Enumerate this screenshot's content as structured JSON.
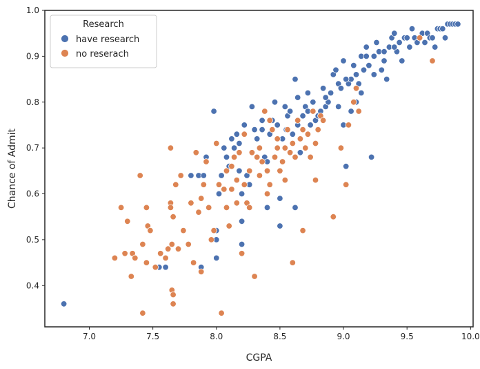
{
  "chart_data": {
    "type": "scatter",
    "title": "",
    "xlabel": "CGPA",
    "ylabel": "Chance of Admit",
    "xlim": [
      6.65,
      10.02
    ],
    "ylim": [
      0.31,
      1.0
    ],
    "xticks": [
      "7.0",
      "7.5",
      "8.0",
      "8.5",
      "9.0",
      "9.5",
      "10.0"
    ],
    "yticks": [
      "0.4",
      "0.5",
      "0.6",
      "0.7",
      "0.8",
      "0.9",
      "1.0"
    ],
    "grid": false,
    "legend": {
      "title": "Research",
      "placement": "top-left",
      "entries": [
        "have research",
        "no reserach"
      ]
    },
    "series": [
      {
        "name": "have research",
        "color": "#4c72b0",
        "points": [
          [
            6.8,
            0.36
          ],
          [
            7.55,
            0.44
          ],
          [
            7.6,
            0.44
          ],
          [
            7.88,
            0.44
          ],
          [
            7.86,
            0.64
          ],
          [
            7.9,
            0.64
          ],
          [
            7.92,
            0.68
          ],
          [
            7.8,
            0.64
          ],
          [
            7.98,
            0.78
          ],
          [
            8.0,
            0.5
          ],
          [
            8.0,
            0.52
          ],
          [
            8.0,
            0.46
          ],
          [
            8.02,
            0.6
          ],
          [
            8.04,
            0.64
          ],
          [
            8.06,
            0.7
          ],
          [
            8.08,
            0.68
          ],
          [
            8.1,
            0.66
          ],
          [
            8.12,
            0.72
          ],
          [
            8.14,
            0.7
          ],
          [
            8.16,
            0.73
          ],
          [
            8.18,
            0.65
          ],
          [
            8.2,
            0.6
          ],
          [
            8.2,
            0.54
          ],
          [
            8.2,
            0.49
          ],
          [
            8.22,
            0.75
          ],
          [
            8.24,
            0.64
          ],
          [
            8.26,
            0.62
          ],
          [
            8.28,
            0.79
          ],
          [
            8.3,
            0.74
          ],
          [
            8.32,
            0.72
          ],
          [
            8.34,
            0.7
          ],
          [
            8.36,
            0.76
          ],
          [
            8.38,
            0.68
          ],
          [
            8.4,
            0.67
          ],
          [
            8.4,
            0.57
          ],
          [
            8.42,
            0.73
          ],
          [
            8.44,
            0.76
          ],
          [
            8.46,
            0.8
          ],
          [
            8.48,
            0.75
          ],
          [
            8.5,
            0.59
          ],
          [
            8.5,
            0.53
          ],
          [
            8.52,
            0.72
          ],
          [
            8.54,
            0.79
          ],
          [
            8.56,
            0.77
          ],
          [
            8.58,
            0.78
          ],
          [
            8.6,
            0.73
          ],
          [
            8.62,
            0.85
          ],
          [
            8.62,
            0.57
          ],
          [
            8.64,
            0.81
          ],
          [
            8.66,
            0.69
          ],
          [
            8.68,
            0.77
          ],
          [
            8.7,
            0.79
          ],
          [
            8.72,
            0.82
          ],
          [
            8.74,
            0.75
          ],
          [
            8.76,
            0.8
          ],
          [
            8.78,
            0.76
          ],
          [
            8.8,
            0.77
          ],
          [
            8.82,
            0.78
          ],
          [
            8.84,
            0.83
          ],
          [
            8.86,
            0.79
          ],
          [
            8.88,
            0.8
          ],
          [
            8.9,
            0.82
          ],
          [
            8.92,
            0.86
          ],
          [
            8.94,
            0.87
          ],
          [
            8.96,
            0.84
          ],
          [
            8.98,
            0.83
          ],
          [
            9.0,
            0.89
          ],
          [
            9.0,
            0.75
          ],
          [
            9.02,
            0.66
          ],
          [
            9.04,
            0.84
          ],
          [
            9.06,
            0.85
          ],
          [
            9.08,
            0.88
          ],
          [
            9.1,
            0.86
          ],
          [
            9.1,
            0.8
          ],
          [
            9.12,
            0.84
          ],
          [
            9.14,
            0.9
          ],
          [
            9.16,
            0.87
          ],
          [
            9.18,
            0.92
          ],
          [
            9.2,
            0.88
          ],
          [
            9.22,
            0.68
          ],
          [
            9.24,
            0.9
          ],
          [
            9.26,
            0.93
          ],
          [
            9.28,
            0.91
          ],
          [
            9.3,
            0.87
          ],
          [
            9.32,
            0.89
          ],
          [
            9.34,
            0.85
          ],
          [
            9.36,
            0.92
          ],
          [
            9.38,
            0.94
          ],
          [
            9.4,
            0.95
          ],
          [
            9.42,
            0.91
          ],
          [
            9.44,
            0.93
          ],
          [
            9.46,
            0.89
          ],
          [
            9.48,
            0.94
          ],
          [
            9.5,
            0.94
          ],
          [
            9.52,
            0.92
          ],
          [
            9.54,
            0.96
          ],
          [
            9.56,
            0.94
          ],
          [
            9.58,
            0.93
          ],
          [
            9.6,
            0.94
          ],
          [
            9.62,
            0.95
          ],
          [
            9.64,
            0.93
          ],
          [
            9.66,
            0.95
          ],
          [
            9.68,
            0.94
          ],
          [
            9.7,
            0.94
          ],
          [
            9.72,
            0.92
          ],
          [
            9.74,
            0.96
          ],
          [
            9.76,
            0.96
          ],
          [
            9.78,
            0.96
          ],
          [
            9.8,
            0.94
          ],
          [
            9.82,
            0.97
          ],
          [
            9.84,
            0.97
          ],
          [
            9.86,
            0.97
          ],
          [
            9.88,
            0.97
          ],
          [
            9.9,
            0.97
          ],
          [
            8.18,
            0.71
          ],
          [
            8.64,
            0.75
          ],
          [
            8.86,
            0.81
          ],
          [
            9.02,
            0.85
          ],
          [
            9.18,
            0.9
          ],
          [
            9.32,
            0.91
          ],
          [
            8.36,
            0.74
          ],
          [
            8.55,
            0.74
          ],
          [
            8.72,
            0.78
          ],
          [
            8.96,
            0.79
          ],
          [
            9.06,
            0.78
          ],
          [
            9.14,
            0.82
          ],
          [
            9.24,
            0.86
          ],
          [
            9.4,
            0.92
          ]
        ]
      },
      {
        "name": "no reserach",
        "color": "#dd8452",
        "points": [
          [
            7.2,
            0.46
          ],
          [
            7.25,
            0.57
          ],
          [
            7.28,
            0.47
          ],
          [
            7.3,
            0.54
          ],
          [
            7.33,
            0.42
          ],
          [
            7.34,
            0.47
          ],
          [
            7.36,
            0.46
          ],
          [
            7.4,
            0.64
          ],
          [
            7.42,
            0.34
          ],
          [
            7.42,
            0.49
          ],
          [
            7.45,
            0.57
          ],
          [
            7.45,
            0.45
          ],
          [
            7.46,
            0.53
          ],
          [
            7.48,
            0.52
          ],
          [
            7.52,
            0.44
          ],
          [
            7.56,
            0.47
          ],
          [
            7.6,
            0.46
          ],
          [
            7.62,
            0.48
          ],
          [
            7.64,
            0.7
          ],
          [
            7.64,
            0.58
          ],
          [
            7.64,
            0.57
          ],
          [
            7.65,
            0.49
          ],
          [
            7.65,
            0.39
          ],
          [
            7.66,
            0.38
          ],
          [
            7.66,
            0.36
          ],
          [
            7.66,
            0.55
          ],
          [
            7.68,
            0.62
          ],
          [
            7.7,
            0.48
          ],
          [
            7.72,
            0.64
          ],
          [
            7.74,
            0.52
          ],
          [
            7.78,
            0.49
          ],
          [
            7.8,
            0.58
          ],
          [
            7.82,
            0.45
          ],
          [
            7.84,
            0.69
          ],
          [
            7.86,
            0.56
          ],
          [
            7.88,
            0.59
          ],
          [
            7.9,
            0.62
          ],
          [
            7.92,
            0.67
          ],
          [
            7.94,
            0.57
          ],
          [
            7.96,
            0.5
          ],
          [
            8.0,
            0.71
          ],
          [
            8.02,
            0.62
          ],
          [
            8.04,
            0.34
          ],
          [
            8.06,
            0.61
          ],
          [
            8.08,
            0.65
          ],
          [
            8.1,
            0.53
          ],
          [
            8.12,
            0.66
          ],
          [
            8.14,
            0.68
          ],
          [
            8.16,
            0.63
          ],
          [
            8.18,
            0.69
          ],
          [
            8.2,
            0.47
          ],
          [
            8.22,
            0.62
          ],
          [
            8.24,
            0.58
          ],
          [
            8.26,
            0.65
          ],
          [
            8.28,
            0.69
          ],
          [
            8.3,
            0.42
          ],
          [
            8.32,
            0.68
          ],
          [
            8.34,
            0.7
          ],
          [
            8.36,
            0.67
          ],
          [
            8.38,
            0.78
          ],
          [
            8.4,
            0.65
          ],
          [
            8.42,
            0.62
          ],
          [
            8.44,
            0.74
          ],
          [
            8.46,
            0.68
          ],
          [
            8.48,
            0.72
          ],
          [
            8.5,
            0.65
          ],
          [
            8.52,
            0.67
          ],
          [
            8.54,
            0.7
          ],
          [
            8.56,
            0.74
          ],
          [
            8.58,
            0.69
          ],
          [
            8.6,
            0.45
          ],
          [
            8.62,
            0.68
          ],
          [
            8.64,
            0.76
          ],
          [
            8.66,
            0.72
          ],
          [
            8.68,
            0.52
          ],
          [
            8.7,
            0.7
          ],
          [
            8.72,
            0.73
          ],
          [
            8.74,
            0.68
          ],
          [
            8.76,
            0.78
          ],
          [
            8.78,
            0.63
          ],
          [
            8.8,
            0.74
          ],
          [
            8.82,
            0.77
          ],
          [
            8.84,
            0.76
          ],
          [
            8.92,
            0.55
          ],
          [
            8.98,
            0.7
          ],
          [
            9.02,
            0.62
          ],
          [
            9.04,
            0.75
          ],
          [
            9.08,
            0.8
          ],
          [
            9.1,
            0.83
          ],
          [
            9.12,
            0.78
          ],
          [
            9.7,
            0.89
          ],
          [
            9.6,
            0.94
          ],
          [
            7.88,
            0.43
          ],
          [
            7.98,
            0.52
          ],
          [
            8.08,
            0.57
          ],
          [
            8.26,
            0.57
          ],
          [
            8.42,
            0.76
          ],
          [
            8.6,
            0.71
          ],
          [
            8.54,
            0.63
          ],
          [
            8.4,
            0.6
          ],
          [
            8.22,
            0.73
          ],
          [
            8.12,
            0.61
          ],
          [
            8.34,
            0.64
          ],
          [
            8.48,
            0.7
          ],
          [
            8.68,
            0.74
          ],
          [
            8.78,
            0.71
          ],
          [
            8.16,
            0.58
          ]
        ]
      }
    ]
  }
}
